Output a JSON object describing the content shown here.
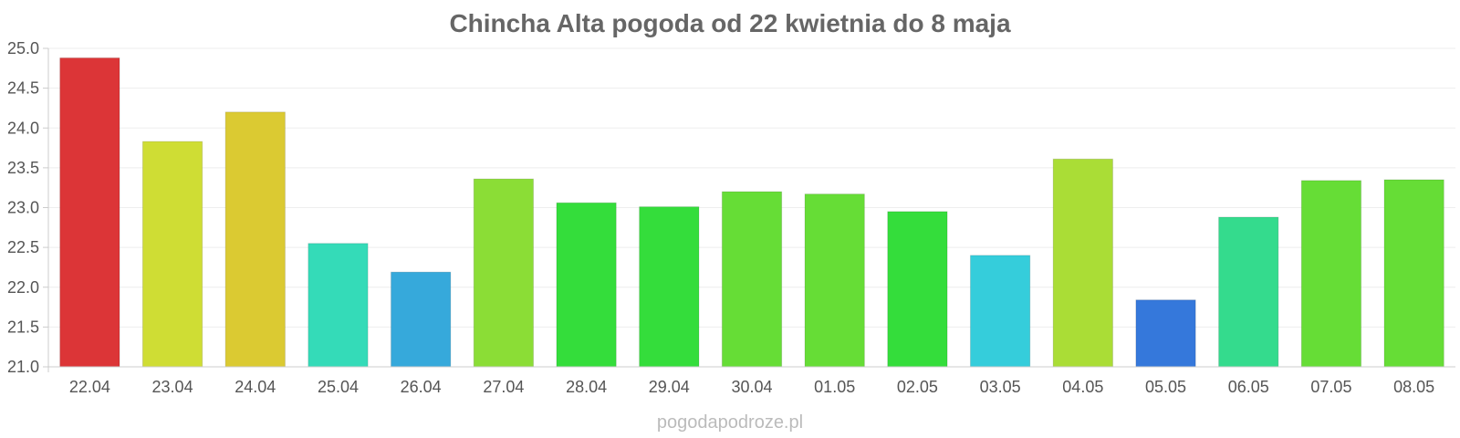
{
  "chart_data": {
    "type": "bar",
    "title": "Chincha Alta pogoda od 22 kwietnia do 8 maja",
    "xlabel": "",
    "ylabel": "",
    "categories": [
      "22.04",
      "23.04",
      "24.04",
      "25.04",
      "26.04",
      "27.04",
      "28.04",
      "29.04",
      "30.04",
      "01.05",
      "02.05",
      "03.05",
      "04.05",
      "05.05",
      "06.05",
      "07.05",
      "08.05"
    ],
    "values": [
      24.88,
      23.83,
      24.2,
      22.55,
      22.19,
      23.36,
      23.06,
      23.01,
      23.2,
      23.17,
      22.95,
      22.4,
      23.61,
      21.84,
      22.88,
      23.34,
      23.35
    ],
    "colors": [
      "#dc3537",
      "#cfdd34",
      "#dbca32",
      "#34dbb8",
      "#36a9db",
      "#8bdd36",
      "#34dd3b",
      "#34dd3b",
      "#66dd36",
      "#66dd36",
      "#34dd3b",
      "#35cddb",
      "#aadd36",
      "#3578db",
      "#34db8d",
      "#66dd36",
      "#66dd36"
    ],
    "ylim": [
      21.0,
      25.0
    ],
    "yticks": [
      "21.0",
      "21.5",
      "22.0",
      "22.5",
      "23.0",
      "23.5",
      "24.0",
      "24.5",
      "25.0"
    ],
    "grid": true,
    "legend": "none"
  },
  "watermark": "pogodapodroze.pl"
}
